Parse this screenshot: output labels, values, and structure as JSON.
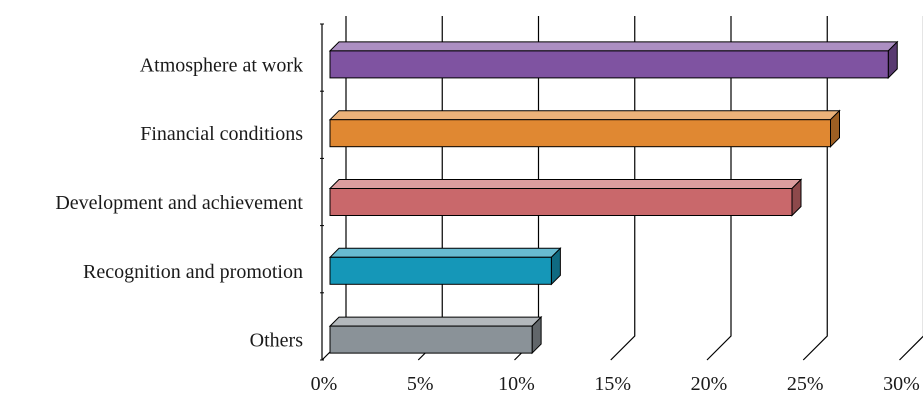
{
  "chart_data": {
    "type": "bar",
    "orientation": "horizontal",
    "style": "3d",
    "title": "",
    "xlabel": "",
    "ylabel": "",
    "categories": [
      "Atmosphere at work",
      "Financial conditions",
      "Development and achievement",
      "Recognition and promotion",
      "Others"
    ],
    "values": [
      29,
      26,
      24,
      11.5,
      10.5
    ],
    "colors": [
      "#7f53a1",
      "#e08832",
      "#c9686b",
      "#1597b8",
      "#8a9298"
    ],
    "xlim": [
      0,
      30
    ],
    "ticks": [
      0,
      5,
      10,
      15,
      20,
      25,
      30
    ],
    "tick_labels": [
      "0%",
      "5%",
      "10%",
      "15%",
      "20%",
      "25%",
      "30%"
    ],
    "grid": true,
    "legend": "none"
  }
}
